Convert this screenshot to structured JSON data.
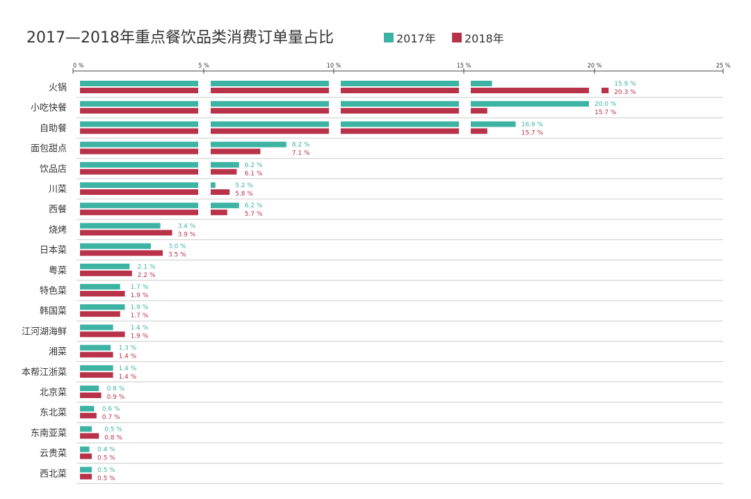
{
  "chart_data": {
    "type": "bar",
    "orientation": "horizontal",
    "title": "2017—2018年重点餐饮品类消费订单量占比",
    "xlim": [
      0,
      25
    ],
    "xticks": [
      "0 %",
      "5 %",
      "10 %",
      "15 %",
      "20 %",
      "25 %"
    ],
    "legend": "top",
    "categories": [
      "火锅",
      "小吃快餐",
      "自助餐",
      "面包甜点",
      "饮品店",
      "川菜",
      "西餐",
      "烧烤",
      "日本菜",
      "粤菜",
      "特色菜",
      "韩国菜",
      "江河湖海鲜",
      "湘菜",
      "本帮江浙菜",
      "北京菜",
      "东北菜",
      "东南亚菜",
      "云贵菜",
      "西北菜"
    ],
    "series": [
      {
        "name": "2017年",
        "color": "#3db3a4",
        "values": [
          15.9,
          20.0,
          16.9,
          8.2,
          6.2,
          5.2,
          6.2,
          3.4,
          3.0,
          2.1,
          1.7,
          1.9,
          1.4,
          1.3,
          1.4,
          0.8,
          0.6,
          0.5,
          0.4,
          0.5
        ]
      },
      {
        "name": "2018年",
        "color": "#b83249",
        "values": [
          20.3,
          15.7,
          15.7,
          7.1,
          6.1,
          5.8,
          5.7,
          3.9,
          3.5,
          2.2,
          1.9,
          1.7,
          1.9,
          1.4,
          1.4,
          0.9,
          0.7,
          0.8,
          0.5,
          0.5
        ]
      }
    ]
  }
}
